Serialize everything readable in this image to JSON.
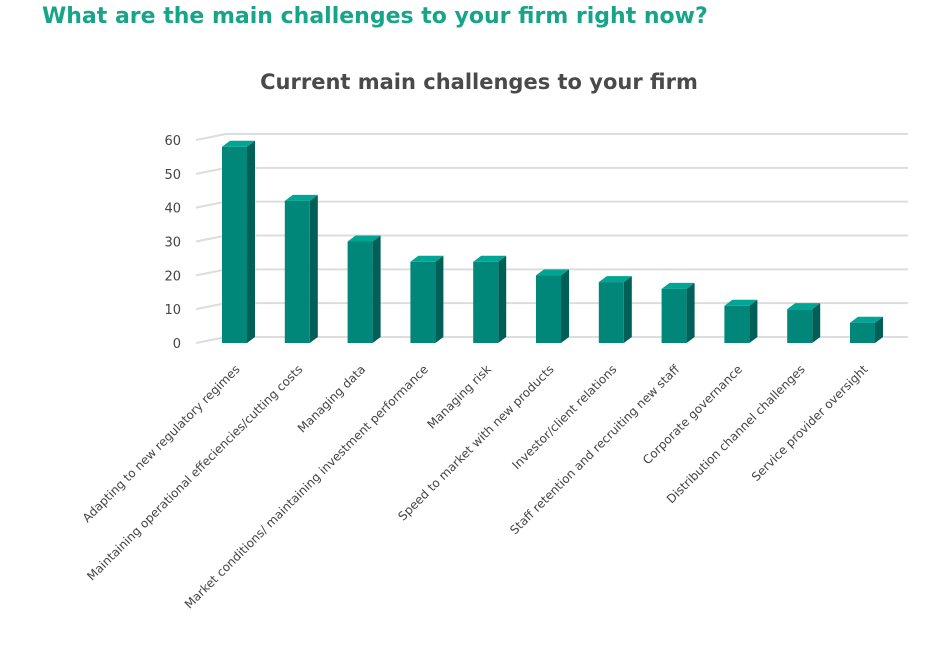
{
  "page": {
    "heading": "What are the main challenges to your firm right now?"
  },
  "colors": {
    "heading": "#17a589",
    "bar_front": "#00877a",
    "bar_side": "#005f56",
    "bar_top": "#00a593",
    "grid": "#dddddd"
  },
  "chart_data": {
    "type": "bar",
    "title": "Current main challenges to your firm",
    "xlabel": "",
    "ylabel": "",
    "ylim": [
      0,
      60
    ],
    "yticks": [
      0,
      10,
      20,
      30,
      40,
      50,
      60
    ],
    "grid": true,
    "style": "3d-columns",
    "categories": [
      "Adapting to new regulatory regimes",
      "Maintaining operational effeciencies/cutting costs",
      "Managing data",
      "Market conditions/ maintaining investment performance",
      "Managing risk",
      "Speed to market with new products",
      "Investor/client relations",
      "Staff retention and recruiting new staff",
      "Corporate governance",
      "Distribution channel challenges",
      "Service provider oversight"
    ],
    "values": [
      58,
      42,
      30,
      24,
      24,
      20,
      18,
      16,
      11,
      10,
      6
    ]
  }
}
